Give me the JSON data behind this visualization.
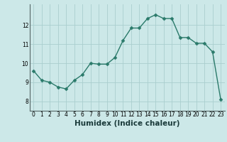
{
  "x": [
    0,
    1,
    2,
    3,
    4,
    5,
    6,
    7,
    8,
    9,
    10,
    11,
    12,
    13,
    14,
    15,
    16,
    17,
    18,
    19,
    20,
    21,
    22,
    23
  ],
  "y": [
    9.6,
    9.1,
    9.0,
    8.75,
    8.65,
    9.1,
    9.4,
    10.0,
    9.95,
    9.95,
    10.3,
    11.2,
    11.85,
    11.85,
    12.35,
    12.55,
    12.35,
    12.35,
    11.35,
    11.35,
    11.05,
    11.05,
    10.6,
    8.1
  ],
  "line_color": "#2a7a6a",
  "marker_color": "#2a7a6a",
  "bg_color": "#cce8e8",
  "grid_color": "#aacece",
  "xlabel": "Humidex (Indice chaleur)",
  "xlim": [
    -0.5,
    23.5
  ],
  "ylim": [
    7.5,
    13.1
  ],
  "yticks": [
    8,
    9,
    10,
    11,
    12
  ],
  "xticks": [
    0,
    1,
    2,
    3,
    4,
    5,
    6,
    7,
    8,
    9,
    10,
    11,
    12,
    13,
    14,
    15,
    16,
    17,
    18,
    19,
    20,
    21,
    22,
    23
  ],
  "tick_fontsize": 5.5,
  "xlabel_fontsize": 7.5,
  "marker_size": 2.5,
  "line_width": 1.0
}
